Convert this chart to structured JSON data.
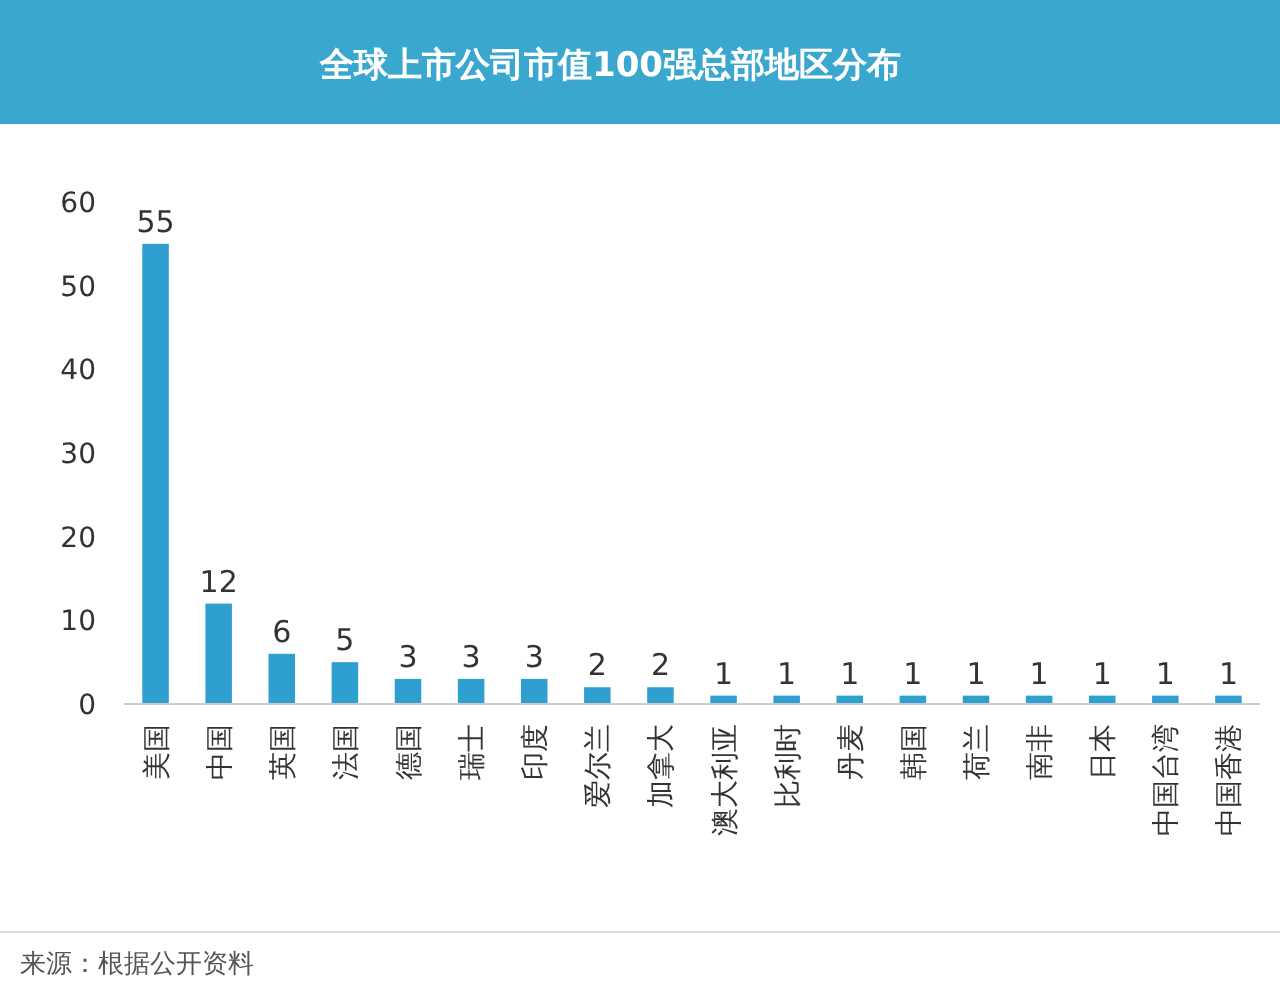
{
  "chart_data": {
    "type": "bar",
    "title": "全球上市公司市值100强总部地区分布",
    "categories": [
      "美国",
      "中国",
      "英国",
      "法国",
      "德国",
      "瑞士",
      "印度",
      "爱尔兰",
      "加拿大",
      "澳大利亚",
      "比利时",
      "丹麦",
      "韩国",
      "荷兰",
      "南非",
      "日本",
      "中国台湾",
      "中国香港"
    ],
    "values": [
      55,
      12,
      6,
      5,
      3,
      3,
      3,
      2,
      2,
      1,
      1,
      1,
      1,
      1,
      1,
      1,
      1,
      1
    ],
    "color": "#2f9fcf",
    "ylim": [
      0,
      60
    ],
    "yticks": [
      0,
      10,
      20,
      30,
      40,
      50,
      60
    ],
    "data_labels": true,
    "annotations": [
      "来源：根据公开资料"
    ]
  }
}
